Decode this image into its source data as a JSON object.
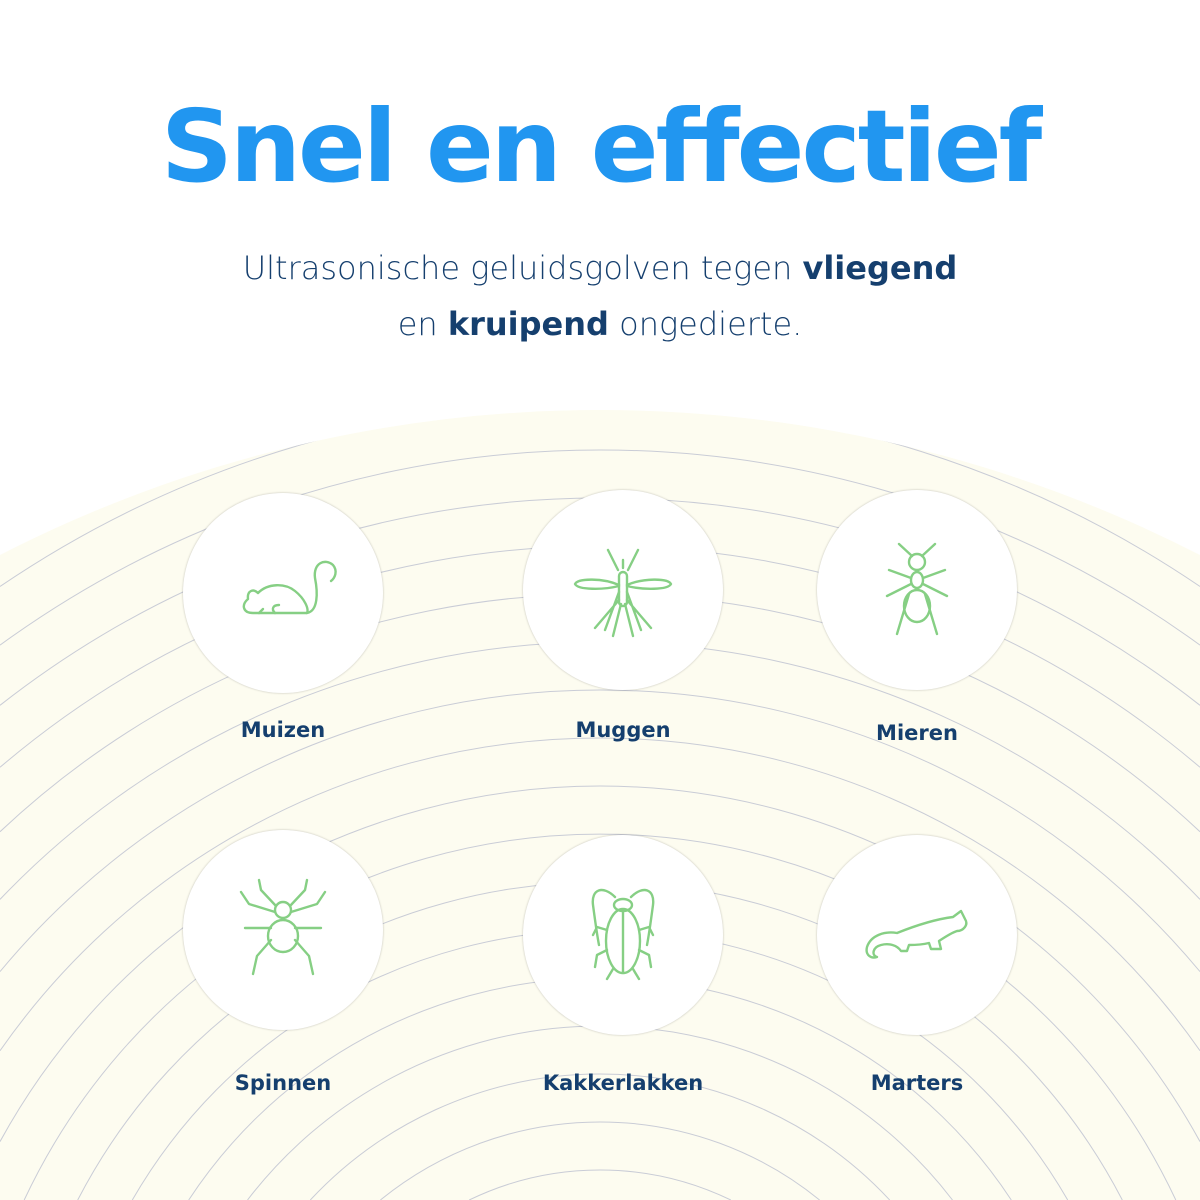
{
  "title": "Snel en effectief",
  "subtitle": {
    "line1_pre": "Ultrasonische geluidsgolven tegen ",
    "line1_bold": "vliegend",
    "line2_pre": "en ",
    "line2_bold": "kruipend",
    "line2_post": " ongedierte."
  },
  "colors": {
    "title": "#2196f0",
    "text": "#153f6e",
    "icon": "#86cf84",
    "background_arc": "#fdfcf0"
  },
  "pests": [
    {
      "label": "Muizen",
      "icon": "mouse-icon"
    },
    {
      "label": "Muggen",
      "icon": "mosquito-icon"
    },
    {
      "label": "Mieren",
      "icon": "ant-icon"
    },
    {
      "label": "Spinnen",
      "icon": "spider-icon"
    },
    {
      "label": "Kakkerlakken",
      "icon": "cockroach-icon"
    },
    {
      "label": "Marters",
      "icon": "marten-icon"
    }
  ]
}
